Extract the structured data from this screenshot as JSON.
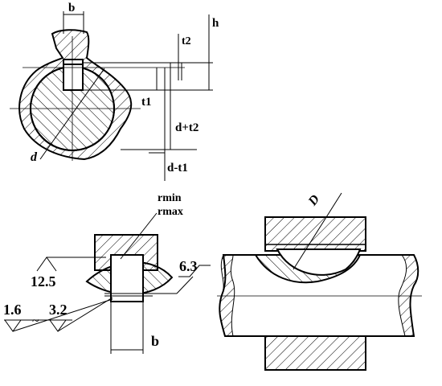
{
  "labels": {
    "b_top": "b",
    "h": "h",
    "t2": "t2",
    "t1": "t1",
    "d_plus_t2": "d+t2",
    "d": "d",
    "d_minus_t1": "d-t1",
    "rmin": "rmin",
    "rmax": "rmax",
    "D": "D",
    "ra_12_5": "12.5",
    "ra_6_3": "6.3",
    "ra_1_6": "1.6",
    "ra_3_2": "3.2",
    "tilde": "~",
    "b_bottom": "b"
  },
  "colors": {
    "line": "#000000",
    "background": "#ffffff"
  }
}
